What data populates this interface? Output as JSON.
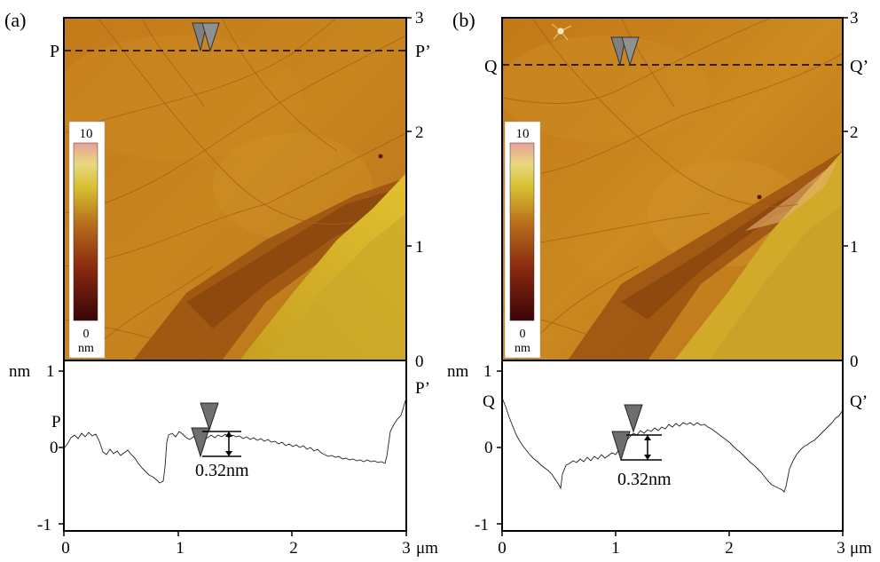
{
  "panels": [
    {
      "id": "a",
      "label": "(a)",
      "line_start": "P",
      "line_end": "P’",
      "colorbar_max": "10",
      "colorbar_min": "0",
      "colorbar_unit": "nm",
      "image_y_ticks": [
        "3",
        "2",
        "1",
        "0"
      ],
      "profile_y_unit": "nm",
      "profile_y_ticks": [
        "1",
        "0",
        "-1"
      ],
      "profile_x_ticks": [
        "0",
        "1",
        "2",
        "3"
      ],
      "profile_x_unit": "μm",
      "step_height": "0.32nm"
    },
    {
      "id": "b",
      "label": "(b)",
      "line_start": "Q",
      "line_end": "Q’",
      "colorbar_max": "10",
      "colorbar_min": "0",
      "colorbar_unit": "nm",
      "image_y_ticks": [
        "3",
        "2",
        "1",
        "0"
      ],
      "profile_y_unit": "nm",
      "profile_y_ticks": [
        "1",
        "0",
        "-1"
      ],
      "profile_x_ticks": [
        "0",
        "1",
        "2",
        "3"
      ],
      "profile_x_unit": "μm",
      "step_height": "0.32nm"
    }
  ],
  "colors": {
    "afm_base": "#c8821c",
    "afm_dark": "#9a5010",
    "afm_bright": "#d8b828",
    "colorbar_stops": [
      "#3a0408",
      "#8a2a10",
      "#b8701c",
      "#d8c030",
      "#f0e060",
      "#e8a098"
    ],
    "marker": "#808080"
  }
}
